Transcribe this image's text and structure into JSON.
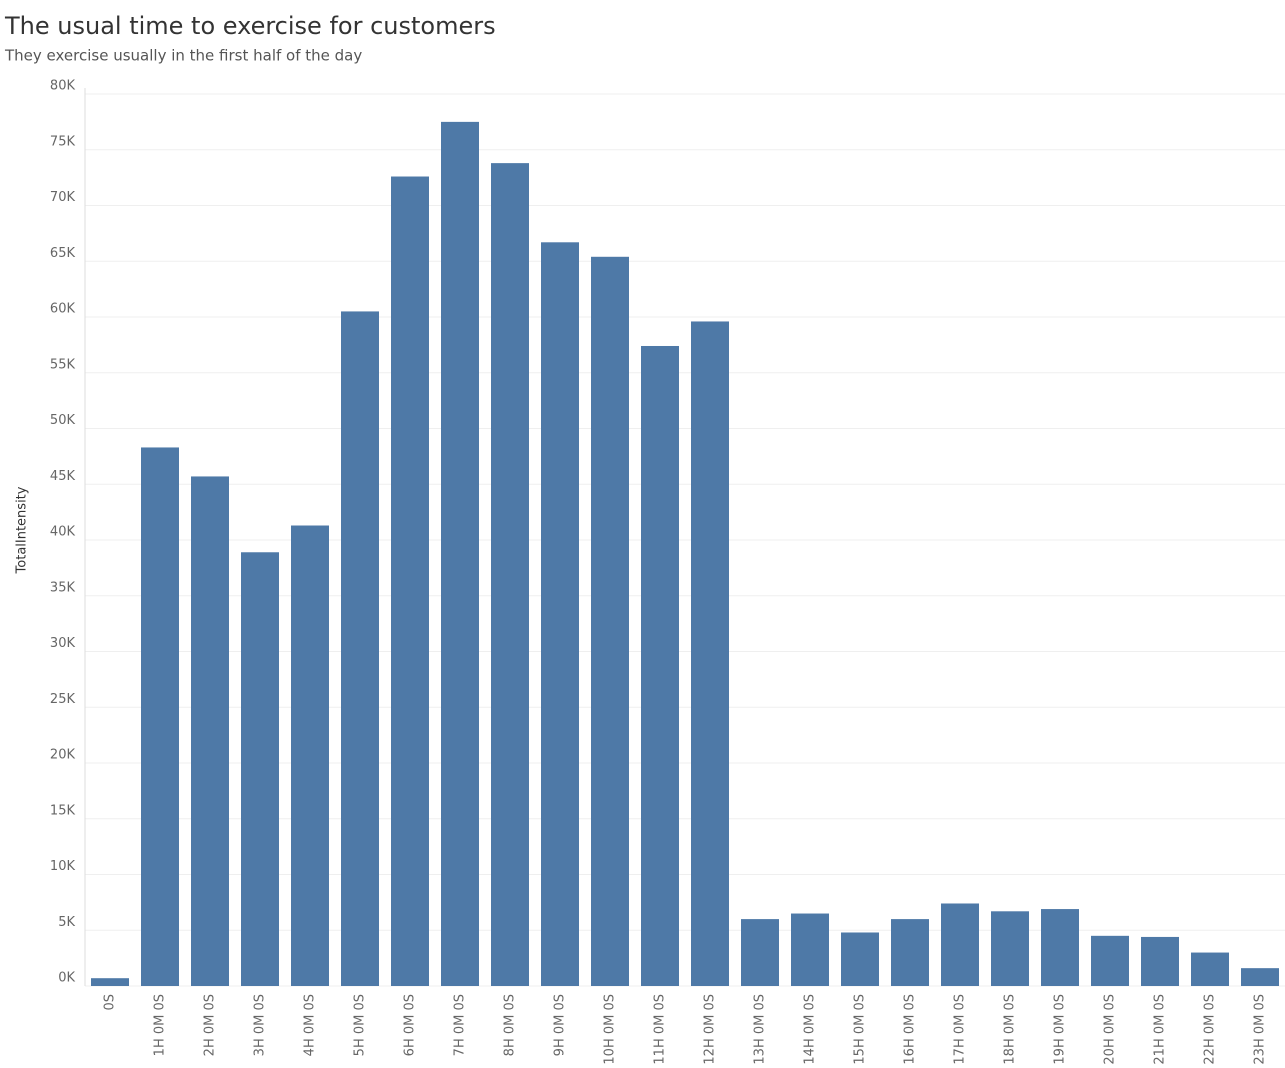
{
  "chart_data": {
    "type": "bar",
    "title": "The usual time to exercise for customers",
    "subtitle": "They exercise usually in the first half of the day",
    "y_label": "TotalIntensity",
    "categories": [
      "0S",
      "1H 0M 0S",
      "2H 0M 0S",
      "3H 0M 0S",
      "4H 0M 0S",
      "5H 0M 0S",
      "6H 0M 0S",
      "7H 0M 0S",
      "8H 0M 0S",
      "9H 0M 0S",
      "10H 0M 0S",
      "11H 0M 0S",
      "12H 0M 0S",
      "13H 0M 0S",
      "14H 0M 0S",
      "15H 0M 0S",
      "16H 0M 0S",
      "17H 0M 0S",
      "18H 0M 0S",
      "19H 0M 0S",
      "20H 0M 0S",
      "21H 0M 0S",
      "22H 0M 0S",
      "23H 0M 0S"
    ],
    "values": [
      700,
      48300,
      45700,
      38900,
      41300,
      60500,
      72600,
      77500,
      73800,
      66700,
      65400,
      57400,
      59600,
      6000,
      6500,
      4800,
      6000,
      7400,
      6700,
      6900,
      4500,
      4400,
      3000,
      1600
    ],
    "color": "#4e79a7",
    "ylim": [
      0,
      80000
    ],
    "yticks": [
      {
        "value": 0,
        "label": "0K"
      },
      {
        "value": 5000,
        "label": "5K"
      },
      {
        "value": 10000,
        "label": "10K"
      },
      {
        "value": 15000,
        "label": "15K"
      },
      {
        "value": 20000,
        "label": "20K"
      },
      {
        "value": 25000,
        "label": "25K"
      },
      {
        "value": 30000,
        "label": "30K"
      },
      {
        "value": 35000,
        "label": "35K"
      },
      {
        "value": 40000,
        "label": "40K"
      },
      {
        "value": 45000,
        "label": "45K"
      },
      {
        "value": 50000,
        "label": "50K"
      },
      {
        "value": 55000,
        "label": "55K"
      },
      {
        "value": 60000,
        "label": "60K"
      },
      {
        "value": 65000,
        "label": "65K"
      },
      {
        "value": 70000,
        "label": "70K"
      },
      {
        "value": 75000,
        "label": "75K"
      },
      {
        "value": 80000,
        "label": "80K"
      }
    ],
    "grid": true
  }
}
